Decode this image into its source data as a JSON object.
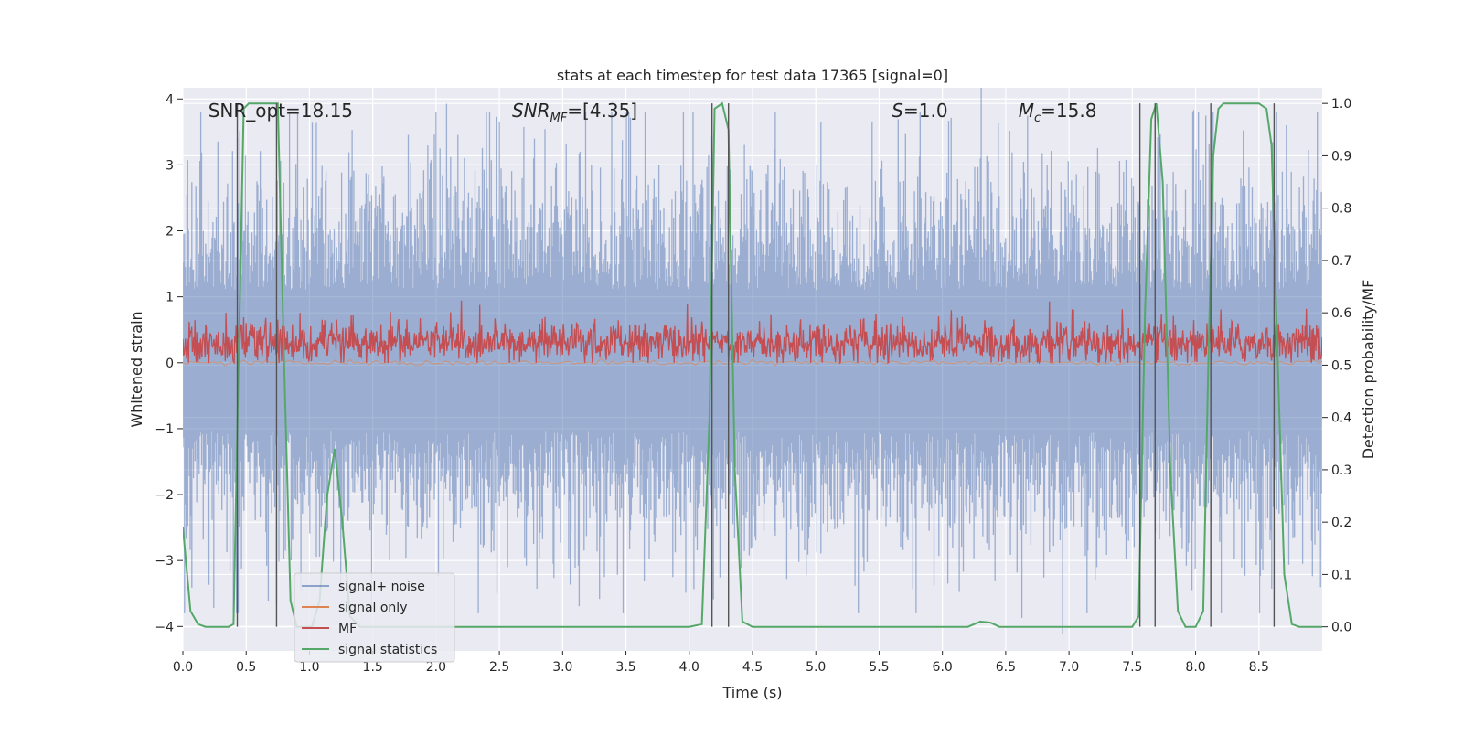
{
  "chart_data": {
    "type": "line",
    "title": "stats at each timestep for test data 17365 [signal=0]",
    "xlabel": "Time (s)",
    "ylabel_left": "Whitened strain",
    "ylabel_right": "Detection probability/MF",
    "xlim": [
      0.0,
      9.0
    ],
    "ylim_left": [
      -4.37,
      4.17
    ],
    "ylim_right": [
      -0.046,
      1.03
    ],
    "x_ticks": [
      "0.0",
      "0.5",
      "1.0",
      "1.5",
      "2.0",
      "2.5",
      "3.0",
      "3.5",
      "4.0",
      "4.5",
      "5.0",
      "5.5",
      "6.0",
      "6.5",
      "7.0",
      "7.5",
      "8.0",
      "8.5"
    ],
    "x_tick_values": [
      0.0,
      0.5,
      1.0,
      1.5,
      2.0,
      2.5,
      3.0,
      3.5,
      4.0,
      4.5,
      5.0,
      5.5,
      6.0,
      6.5,
      7.0,
      7.5,
      8.0,
      8.5
    ],
    "y_left_ticks": [
      "4",
      "3",
      "2",
      "1",
      "0",
      "−1",
      "−2",
      "−3",
      "−4"
    ],
    "y_left_tick_values": [
      4,
      3,
      2,
      1,
      0,
      -1,
      -2,
      -3,
      -4
    ],
    "y_right_ticks": [
      "1.0",
      "0.9",
      "0.8",
      "0.7",
      "0.6",
      "0.5",
      "0.4",
      "0.3",
      "0.2",
      "0.1",
      "0.0"
    ],
    "y_right_tick_values": [
      1.0,
      0.9,
      0.8,
      0.7,
      0.6,
      0.5,
      0.4,
      0.3,
      0.2,
      0.1,
      0.0
    ],
    "grid": true,
    "legend_position": "lower-left",
    "annotations": [
      {
        "text": "SNR_opt=18.15",
        "x": 0.2,
        "y": 3.82
      },
      {
        "text": "SNR_MF=[4.35]",
        "x": 2.6,
        "y": 3.82
      },
      {
        "text": "S=1.0",
        "x": 5.6,
        "y": 3.82
      },
      {
        "text": "M_c=15.8",
        "x": 6.6,
        "y": 3.82
      }
    ],
    "series": [
      {
        "name": "signal+ noise",
        "axis": "left",
        "color": "#4c72b0",
        "style": "noise-band",
        "mean": 0.0,
        "std": 0.9,
        "typical_range": [
          -1.9,
          2.0
        ],
        "peak_range": [
          -3.8,
          3.8
        ]
      },
      {
        "name": "signal only",
        "axis": "left",
        "color": "#dd8452",
        "style": "flat",
        "mean": 0.0,
        "std": 0.02
      },
      {
        "name": "MF",
        "axis": "left",
        "color": "#c44e52",
        "style": "noise-band",
        "mean": 0.3,
        "typical_range": [
          0.05,
          0.6
        ],
        "peak_range": [
          0.0,
          0.95
        ]
      },
      {
        "name": "signal statistics",
        "axis": "right",
        "color": "#55a868",
        "x": [
          0.0,
          0.06,
          0.12,
          0.18,
          0.24,
          0.3,
          0.36,
          0.4,
          0.44,
          0.48,
          0.52,
          0.58,
          0.64,
          0.7,
          0.75,
          0.8,
          0.85,
          0.9,
          0.96,
          1.02,
          1.08,
          1.14,
          1.2,
          1.26,
          1.32,
          1.4,
          1.5,
          2.0,
          2.5,
          3.0,
          3.5,
          4.0,
          4.1,
          4.16,
          4.2,
          4.26,
          4.31,
          4.36,
          4.42,
          4.5,
          5.0,
          5.5,
          6.0,
          6.2,
          6.3,
          6.38,
          6.45,
          7.0,
          7.5,
          7.55,
          7.6,
          7.65,
          7.69,
          7.74,
          7.8,
          7.86,
          7.92,
          8.0,
          8.06,
          8.1,
          8.14,
          8.18,
          8.22,
          8.26,
          8.32,
          8.4,
          8.5,
          8.56,
          8.6,
          8.65,
          8.7,
          8.76,
          8.82,
          8.9,
          9.0
        ],
        "values": [
          0.19,
          0.03,
          0.005,
          0.0,
          0.0,
          0.0,
          0.0,
          0.005,
          0.5,
          0.99,
          1.0,
          1.0,
          1.0,
          1.0,
          1.0,
          0.5,
          0.05,
          0.0,
          0.0,
          0.0,
          0.05,
          0.25,
          0.34,
          0.2,
          0.02,
          0.0,
          0.0,
          0.0,
          0.0,
          0.0,
          0.0,
          0.0,
          0.005,
          0.4,
          0.99,
          1.0,
          0.95,
          0.3,
          0.01,
          0.0,
          0.0,
          0.0,
          0.0,
          0.0,
          0.01,
          0.008,
          0.0,
          0.0,
          0.0,
          0.02,
          0.6,
          0.97,
          1.0,
          0.85,
          0.3,
          0.03,
          0.0,
          0.0,
          0.03,
          0.5,
          0.9,
          0.99,
          1.0,
          1.0,
          1.0,
          1.0,
          1.0,
          0.99,
          0.92,
          0.5,
          0.1,
          0.005,
          0.0,
          0.0,
          0.0
        ]
      }
    ],
    "vertical_markers": {
      "color": "#555555",
      "x": [
        0.43,
        0.74,
        4.18,
        4.31,
        7.56,
        7.68,
        8.12,
        8.62
      ],
      "y_range_right": [
        0.0,
        1.0
      ]
    }
  }
}
